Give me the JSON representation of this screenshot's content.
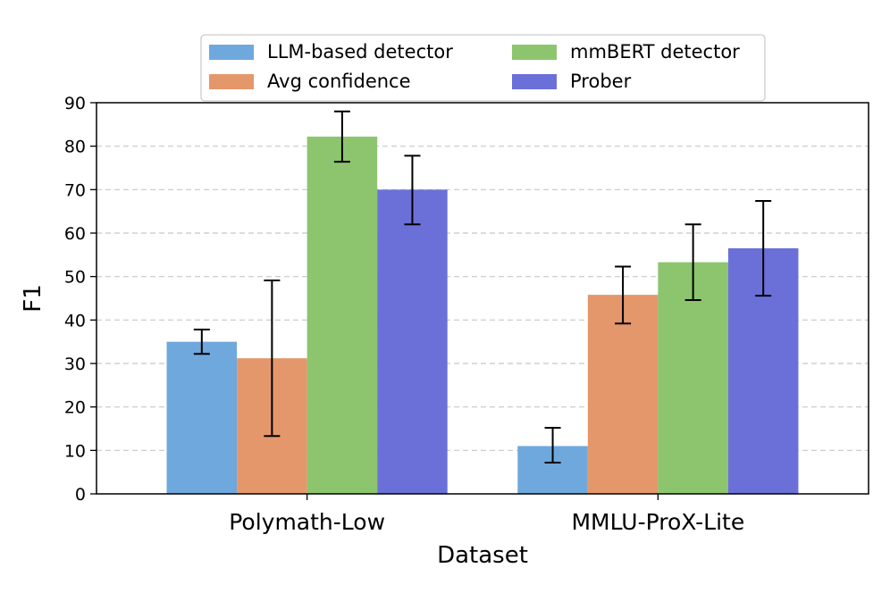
{
  "chart_data": {
    "type": "bar",
    "categories": [
      "Polymath-Low",
      "MMLU-ProX-Lite"
    ],
    "xlabel": "Dataset",
    "ylabel": "F1",
    "ylim": [
      0,
      90
    ],
    "yticks": [
      0,
      10,
      20,
      30,
      40,
      50,
      60,
      70,
      80,
      90
    ],
    "grid": "y-dashed",
    "legend_position": "top-center",
    "series": [
      {
        "name": "LLM-based detector",
        "color": "#6fa8dc",
        "values": [
          35.0,
          11.0
        ],
        "error_low": [
          32.2,
          7.2
        ],
        "error_high": [
          37.8,
          15.2
        ]
      },
      {
        "name": "Avg confidence",
        "color": "#e5976c",
        "values": [
          31.2,
          45.8
        ],
        "error_low": [
          13.3,
          39.2
        ],
        "error_high": [
          49.1,
          52.3
        ]
      },
      {
        "name": "mmBERT detector",
        "color": "#8cc56e",
        "values": [
          82.2,
          53.3
        ],
        "error_low": [
          76.4,
          44.6
        ],
        "error_high": [
          88.0,
          62.0
        ]
      },
      {
        "name": "Prober",
        "color": "#6b70d9",
        "values": [
          70.0,
          56.5
        ],
        "error_low": [
          62.0,
          45.6
        ],
        "error_high": [
          77.8,
          67.4
        ]
      }
    ]
  }
}
